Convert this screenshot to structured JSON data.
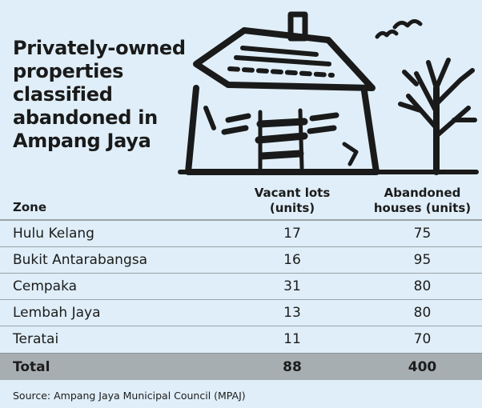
{
  "title_lines": [
    "Privately-owned",
    "properties",
    "classified",
    "abandoned in",
    "Ampang Jaya"
  ],
  "illustration": {
    "icon": "abandoned-house-icon",
    "stroke_color": "#1a1a1a"
  },
  "colors": {
    "background": "#dfeef8",
    "total_row": "#a7aeb2",
    "rule": "#9aa3a8"
  },
  "chart_data": {
    "type": "table",
    "columns": {
      "zone": "Zone",
      "vacant_line1": "Vacant lots",
      "vacant_line2": "(units)",
      "abandoned_line1": "Abandoned",
      "abandoned_line2": "houses (units)"
    },
    "rows": [
      {
        "zone": "Hulu Kelang",
        "vacant_lots": "17",
        "abandoned_houses": "75"
      },
      {
        "zone": "Bukit Antarabangsa",
        "vacant_lots": "16",
        "abandoned_houses": "95"
      },
      {
        "zone": "Cempaka",
        "vacant_lots": "31",
        "abandoned_houses": "80"
      },
      {
        "zone": "Lembah Jaya",
        "vacant_lots": "13",
        "abandoned_houses": "80"
      },
      {
        "zone": "Teratai",
        "vacant_lots": "11",
        "abandoned_houses": "70"
      }
    ],
    "total": {
      "label": "Total",
      "vacant_lots": "88",
      "abandoned_houses": "400"
    }
  },
  "source": "Source: Ampang Jaya Municipal Council (MPAJ)"
}
